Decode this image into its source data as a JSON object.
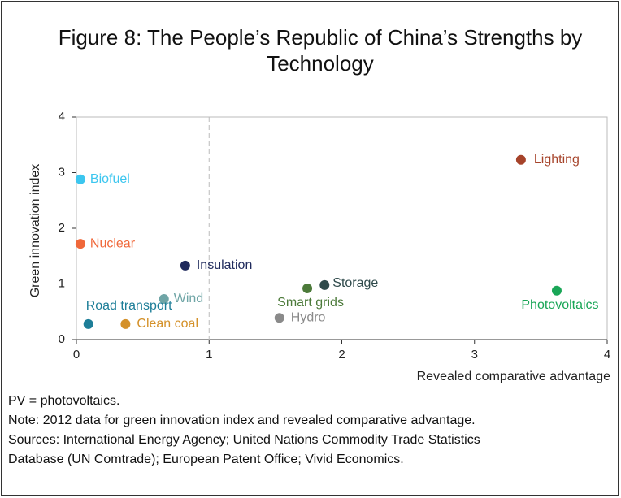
{
  "chart_data": {
    "type": "scatter",
    "title": "Figure 8: The People’s Republic of China’s Strengths by Technology",
    "x_label": "Revealed comparative advantage",
    "y_label": "Green innovation index",
    "point_labels": [
      "Biofuel",
      "Nuclear",
      "Insulation",
      "Wind",
      "Road transport",
      "Clean coal",
      "Hydro",
      "Smart grids",
      "Storage",
      "Lighting",
      "Photovoltaics"
    ],
    "x": [
      0.03,
      0.03,
      0.82,
      0.66,
      0.09,
      0.37,
      1.53,
      1.74,
      1.87,
      3.35,
      3.62
    ],
    "values": [
      2.88,
      1.72,
      1.33,
      0.73,
      0.28,
      0.28,
      0.39,
      0.92,
      0.98,
      3.23,
      0.88
    ],
    "colors": [
      "#3cc6ef",
      "#f0683a",
      "#1f2a5c",
      "#6fa5a6",
      "#1d7e98",
      "#d4912a",
      "#8a8a8a",
      "#4c7a3a",
      "#2f4a4b",
      "#a6432a",
      "#1aa657"
    ],
    "xlim": [
      0,
      4
    ],
    "ylim": [
      0,
      4
    ],
    "xticks": [
      0,
      1,
      2,
      3,
      4
    ],
    "yticks": [
      0,
      1,
      2,
      3,
      4
    ],
    "reference_lines": {
      "x": 1,
      "y": 1
    },
    "notes": [
      "PV = photovoltaics.",
      "Note: 2012 data for green innovation index and revealed comparative advantage.",
      "Sources: International Energy Agency; United Nations Commodity Trade Statistics",
      "Database (UN Comtrade); European Patent Office; Vivid Economics."
    ]
  }
}
